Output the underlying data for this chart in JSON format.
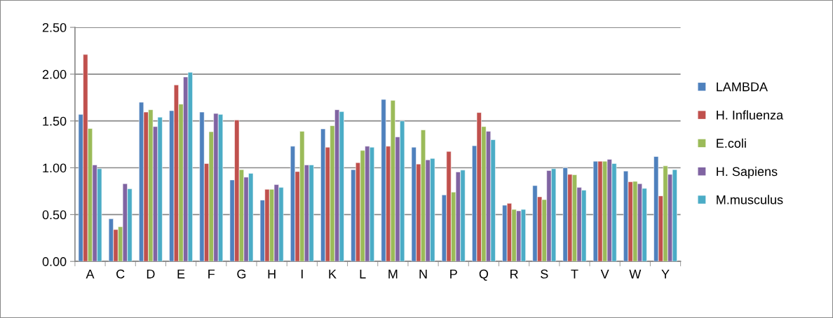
{
  "chart_data": {
    "type": "bar",
    "categories": [
      "A",
      "C",
      "D",
      "E",
      "F",
      "G",
      "H",
      "I",
      "K",
      "L",
      "M",
      "N",
      "P",
      "Q",
      "R",
      "S",
      "T",
      "V",
      "W",
      "Y"
    ],
    "series": [
      {
        "name": "LAMBDA",
        "color": "#4f81bd",
        "values": [
          1.57,
          0.455,
          1.7,
          1.61,
          1.595,
          0.87,
          0.655,
          1.23,
          1.415,
          0.98,
          1.73,
          1.22,
          0.71,
          1.235,
          0.6,
          0.81,
          1.0,
          1.07,
          0.965,
          1.12
        ]
      },
      {
        "name": "H. Influenza",
        "color": "#c0504d",
        "values": [
          2.21,
          0.34,
          1.595,
          1.885,
          1.045,
          1.51,
          0.77,
          0.96,
          1.22,
          1.055,
          1.23,
          1.04,
          1.175,
          1.59,
          0.62,
          0.69,
          0.93,
          1.07,
          0.85,
          0.7
        ]
      },
      {
        "name": "E.coli",
        "color": "#9bbb59",
        "values": [
          1.42,
          0.37,
          1.62,
          1.68,
          1.385,
          0.98,
          0.77,
          1.39,
          1.45,
          1.185,
          1.72,
          1.405,
          0.74,
          1.44,
          0.555,
          0.66,
          0.925,
          1.07,
          0.855,
          1.02
        ]
      },
      {
        "name": "H. Sapiens",
        "color": "#8064a2",
        "values": [
          1.03,
          0.83,
          1.44,
          1.97,
          1.58,
          0.9,
          0.82,
          1.03,
          1.62,
          1.23,
          1.33,
          1.085,
          0.955,
          1.39,
          0.54,
          0.97,
          0.79,
          1.09,
          0.83,
          0.93
        ]
      },
      {
        "name": "M.musculus",
        "color": "#4bacc6",
        "values": [
          0.99,
          0.775,
          1.54,
          2.02,
          1.57,
          0.94,
          0.79,
          1.03,
          1.6,
          1.22,
          1.5,
          1.1,
          0.975,
          1.3,
          0.555,
          0.99,
          0.76,
          1.045,
          0.78,
          0.98
        ]
      }
    ],
    "ylim": [
      0,
      2.5
    ],
    "yticks": [
      {
        "value": 0,
        "label": "0.00"
      },
      {
        "value": 0.5,
        "label": "0.50"
      },
      {
        "value": 1,
        "label": "1.00"
      },
      {
        "value": 1.5,
        "label": "1.50"
      },
      {
        "value": 2,
        "label": "2.00"
      },
      {
        "value": 2.5,
        "label": "2.50"
      }
    ],
    "grid": "y",
    "legend": "right"
  }
}
